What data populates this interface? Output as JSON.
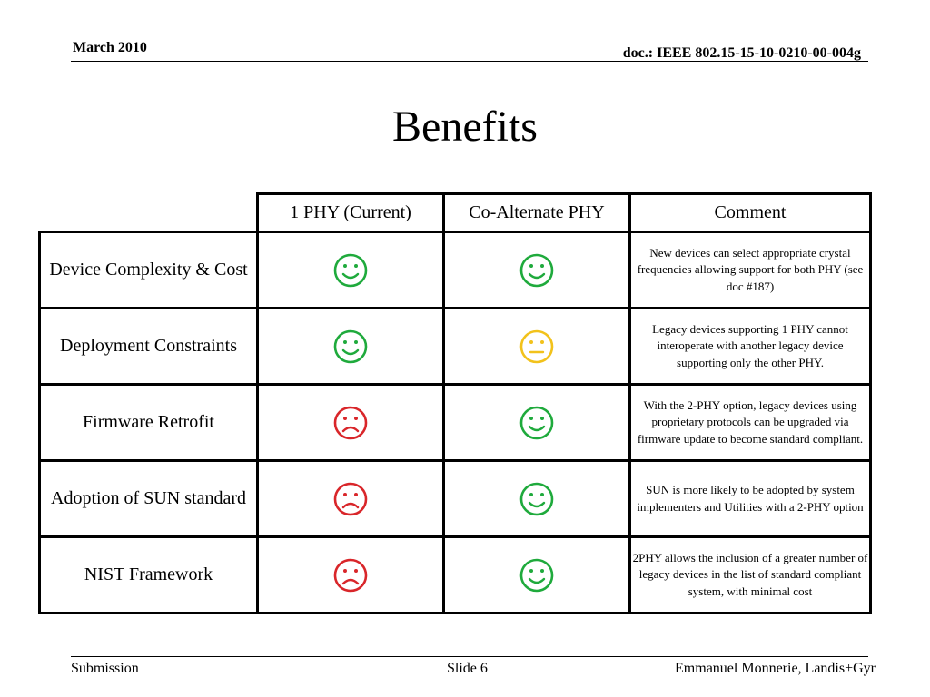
{
  "header": {
    "date": "March 2010",
    "doc_id": "doc.: IEEE 802.15-15-10-0210-00-004g"
  },
  "title": "Benefits",
  "table": {
    "columns": [
      "1 PHY (Current)",
      "Co-Alternate PHY",
      "Comment"
    ],
    "rows": [
      {
        "label": "Device Complexity & Cost",
        "one_phy": "happy",
        "co_alt": "happy",
        "comment": "New devices can select appropriate crystal frequencies allowing support for both PHY  (see doc #187)"
      },
      {
        "label": "Deployment Constraints",
        "one_phy": "happy",
        "co_alt": "neutral",
        "comment": "Legacy devices supporting  1 PHY cannot interoperate with another legacy device supporting only the other PHY."
      },
      {
        "label": "Firmware Retrofit",
        "one_phy": "sad",
        "co_alt": "happy",
        "comment": "With the 2-PHY option, legacy devices using proprietary protocols can be upgraded via firmware update to become standard compliant."
      },
      {
        "label": "Adoption of SUN standard",
        "one_phy": "sad",
        "co_alt": "happy",
        "comment": "SUN is more likely to be adopted by system implementers and Utilities with a 2-PHY option"
      },
      {
        "label": "NIST Framework",
        "one_phy": "sad",
        "co_alt": "happy",
        "comment": "2PHY allows the inclusion of a greater number of legacy devices in the list of standard compliant system, with minimal cost"
      }
    ]
  },
  "face_colors": {
    "happy": "#1faa3c",
    "neutral": "#f2c21b",
    "sad": "#d9262a"
  },
  "footer": {
    "left": "Submission",
    "center": "Slide 6",
    "right": "Emmanuel Monnerie, Landis+Gyr"
  }
}
